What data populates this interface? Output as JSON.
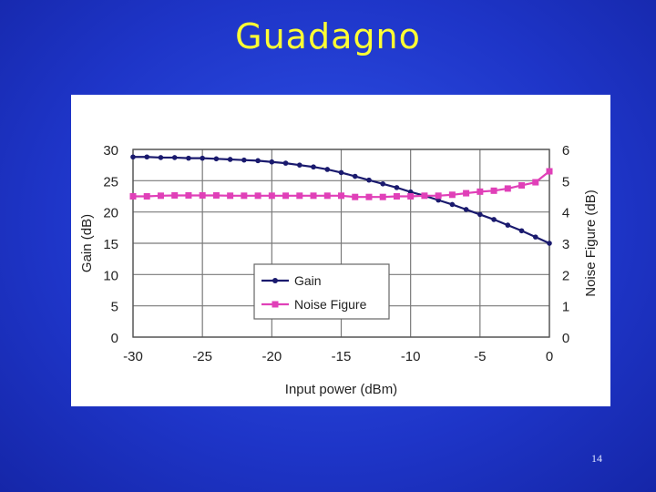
{
  "slide": {
    "title": "Guadagno",
    "page_number": "14"
  },
  "chart_data": {
    "type": "line",
    "xlabel": "Input power (dBm)",
    "ylabel": "Gain (dB)",
    "y2label": "Noise Figure (dB)",
    "xlim": [
      -30,
      0
    ],
    "ylim": [
      0,
      30
    ],
    "y2lim": [
      0,
      6
    ],
    "x_ticks": [
      -30,
      -25,
      -20,
      -15,
      -10,
      -5,
      0
    ],
    "y_ticks": [
      0,
      5,
      10,
      15,
      20,
      25,
      30
    ],
    "y2_ticks": [
      0,
      1,
      2,
      3,
      4,
      5,
      6
    ],
    "grid": true,
    "legend_position": "lower-center",
    "series": [
      {
        "name": "Gain",
        "axis": "left",
        "color": "#1a1a6e",
        "marker": "circle",
        "x": [
          -30,
          -29,
          -28,
          -27,
          -26,
          -25,
          -24,
          -23,
          -22,
          -21,
          -20,
          -19,
          -18,
          -17,
          -16,
          -15,
          -14,
          -13,
          -12,
          -11,
          -10,
          -9,
          -8,
          -7,
          -6,
          -5,
          -4,
          -3,
          -2,
          -1,
          0
        ],
        "values": [
          28.8,
          28.8,
          28.7,
          28.7,
          28.6,
          28.6,
          28.5,
          28.4,
          28.3,
          28.2,
          28.0,
          27.8,
          27.5,
          27.2,
          26.8,
          26.3,
          25.7,
          25.1,
          24.5,
          23.9,
          23.2,
          22.6,
          21.9,
          21.2,
          20.4,
          19.6,
          18.8,
          17.9,
          17.0,
          16.0,
          15.0
        ]
      },
      {
        "name": "Noise Figure",
        "axis": "right",
        "color": "#e040b8",
        "marker": "square",
        "x": [
          -30,
          -29,
          -28,
          -27,
          -26,
          -25,
          -24,
          -23,
          -22,
          -21,
          -20,
          -19,
          -18,
          -17,
          -16,
          -15,
          -14,
          -13,
          -12,
          -11,
          -10,
          -9,
          -8,
          -7,
          -6,
          -5,
          -4,
          -3,
          -2,
          -1,
          0
        ],
        "values": [
          4.5,
          4.5,
          4.52,
          4.53,
          4.53,
          4.53,
          4.53,
          4.52,
          4.52,
          4.52,
          4.52,
          4.52,
          4.52,
          4.52,
          4.52,
          4.52,
          4.48,
          4.48,
          4.48,
          4.5,
          4.5,
          4.52,
          4.52,
          4.55,
          4.6,
          4.65,
          4.68,
          4.75,
          4.85,
          4.95,
          5.3
        ]
      }
    ]
  }
}
